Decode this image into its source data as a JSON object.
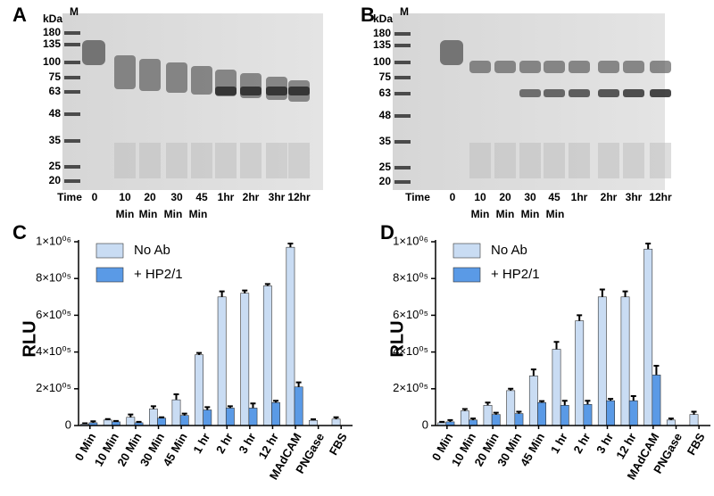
{
  "gels": [
    {
      "label": "A",
      "unit": "kDa",
      "marker": "M",
      "time": "Time",
      "markers": [
        "180",
        "135",
        "100",
        "75",
        "63",
        "48",
        "35",
        "25",
        "20"
      ],
      "lanes": [
        "0",
        "10",
        "20",
        "30",
        "45",
        "1hr",
        "2hr",
        "3hr",
        "12hr"
      ],
      "lane_units": [
        "Min",
        "Min",
        "Min",
        "Min"
      ]
    },
    {
      "label": "B",
      "unit": "kDa",
      "marker": "M",
      "time": "Time",
      "markers": [
        "180",
        "135",
        "100",
        "75",
        "63",
        "48",
        "35",
        "25",
        "20"
      ],
      "lanes": [
        "0",
        "10",
        "20",
        "30",
        "45",
        "1hr",
        "2hr",
        "3hr",
        "12hr"
      ],
      "lane_units": [
        "Min",
        "Min",
        "Min",
        "Min"
      ]
    }
  ],
  "chart_data": [
    {
      "type": "bar",
      "label": "C",
      "y_label": "RLU",
      "legend": "upper left",
      "categories": [
        "0 Min",
        "10 Min",
        "20 Min",
        "30 Min",
        "45 Min",
        "1 hr",
        "2 hr",
        "3 hr",
        "12 hr",
        "MAdCAM",
        "PNGase",
        "FBS"
      ],
      "series": [
        {
          "name": "No Ab",
          "color": "#c9dcf3",
          "values": [
            8000,
            30000,
            45000,
            90000,
            140000,
            385000,
            700000,
            720000,
            760000,
            970000,
            28000,
            35000
          ],
          "errors": [
            4000,
            5000,
            15000,
            15000,
            30000,
            10000,
            30000,
            15000,
            10000,
            20000,
            6000,
            10000
          ]
        },
        {
          "name": "+ HP2/1",
          "color": "#5a9ae6",
          "values": [
            15000,
            20000,
            15000,
            40000,
            55000,
            85000,
            95000,
            95000,
            125000,
            210000,
            null,
            null
          ],
          "errors": [
            8000,
            5000,
            5000,
            5000,
            10000,
            15000,
            10000,
            25000,
            10000,
            25000,
            null,
            null
          ]
        }
      ],
      "ylim": [
        0,
        1000000
      ],
      "yticks": [
        0,
        {
          "value": 200000,
          "label": "2×10⁰⁵"
        },
        {
          "value": 400000,
          "label": "4×10⁰⁵"
        },
        {
          "value": 600000,
          "label": "6×10⁰⁵"
        },
        {
          "value": 800000,
          "label": "8×10⁰⁵"
        },
        {
          "value": 1000000,
          "label": "1×10⁰⁶"
        }
      ]
    },
    {
      "type": "bar",
      "label": "D",
      "y_label": "RLU",
      "legend": "upper left",
      "categories": [
        "0 Min",
        "10 Min",
        "20 Min",
        "30 Min",
        "45 Min",
        "1 hr",
        "2 hr",
        "3 hr",
        "12 hr",
        "MAdCAM",
        "PNGase",
        "FBS"
      ],
      "series": [
        {
          "name": "No Ab",
          "color": "#c9dcf3",
          "values": [
            15000,
            80000,
            110000,
            190000,
            270000,
            415000,
            570000,
            700000,
            700000,
            960000,
            30000,
            60000
          ],
          "errors": [
            5000,
            10000,
            15000,
            10000,
            35000,
            40000,
            30000,
            40000,
            30000,
            30000,
            8000,
            15000
          ]
        },
        {
          "name": "+ HP2/1",
          "color": "#5a9ae6",
          "values": [
            20000,
            30000,
            60000,
            65000,
            125000,
            110000,
            115000,
            135000,
            135000,
            275000,
            null,
            null
          ],
          "errors": [
            10000,
            8000,
            10000,
            10000,
            8000,
            25000,
            20000,
            10000,
            25000,
            50000,
            null,
            null
          ]
        }
      ],
      "ylim": [
        0,
        1000000
      ],
      "yticks": [
        0,
        {
          "value": 200000,
          "label": "2×10⁰⁵"
        },
        {
          "value": 400000,
          "label": "4×10⁰⁵"
        },
        {
          "value": 600000,
          "label": "6×10⁰⁵"
        },
        {
          "value": 800000,
          "label": "8×10⁰⁵"
        },
        {
          "value": 1000000,
          "label": "1×10⁰⁶"
        }
      ]
    }
  ]
}
